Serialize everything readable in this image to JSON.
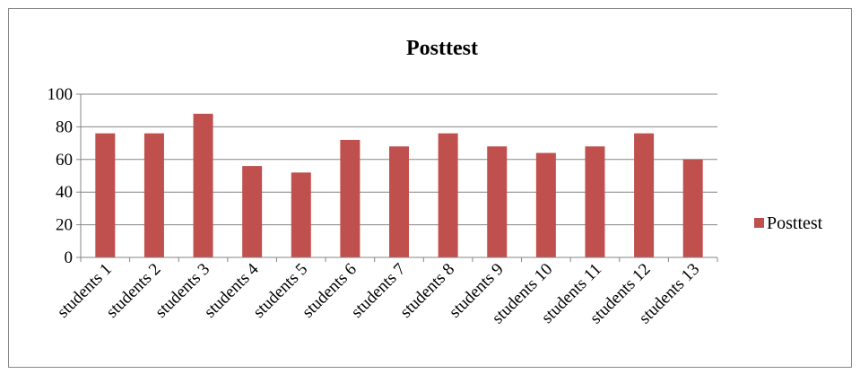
{
  "chart_data": {
    "type": "bar",
    "title": "Posttest",
    "xlabel": "",
    "ylabel": "",
    "categories": [
      "students 1",
      "students 2",
      "students 3",
      "students 4",
      "students 5",
      "students 6",
      "students 7",
      "students 8",
      "students 9",
      "students 10",
      "students 11",
      "students 12",
      "students 13"
    ],
    "series": [
      {
        "name": "Posttest",
        "values": [
          76,
          76,
          88,
          56,
          52,
          72,
          68,
          76,
          68,
          64,
          68,
          76,
          60
        ]
      }
    ],
    "ylim": [
      0,
      100
    ],
    "yticks": [
      "0",
      "20",
      "40",
      "60",
      "80",
      "100"
    ],
    "grid": true,
    "legend_position": "right",
    "colors": {
      "bar": "#c0504d",
      "grid": "#868686",
      "border": "#868686"
    }
  }
}
